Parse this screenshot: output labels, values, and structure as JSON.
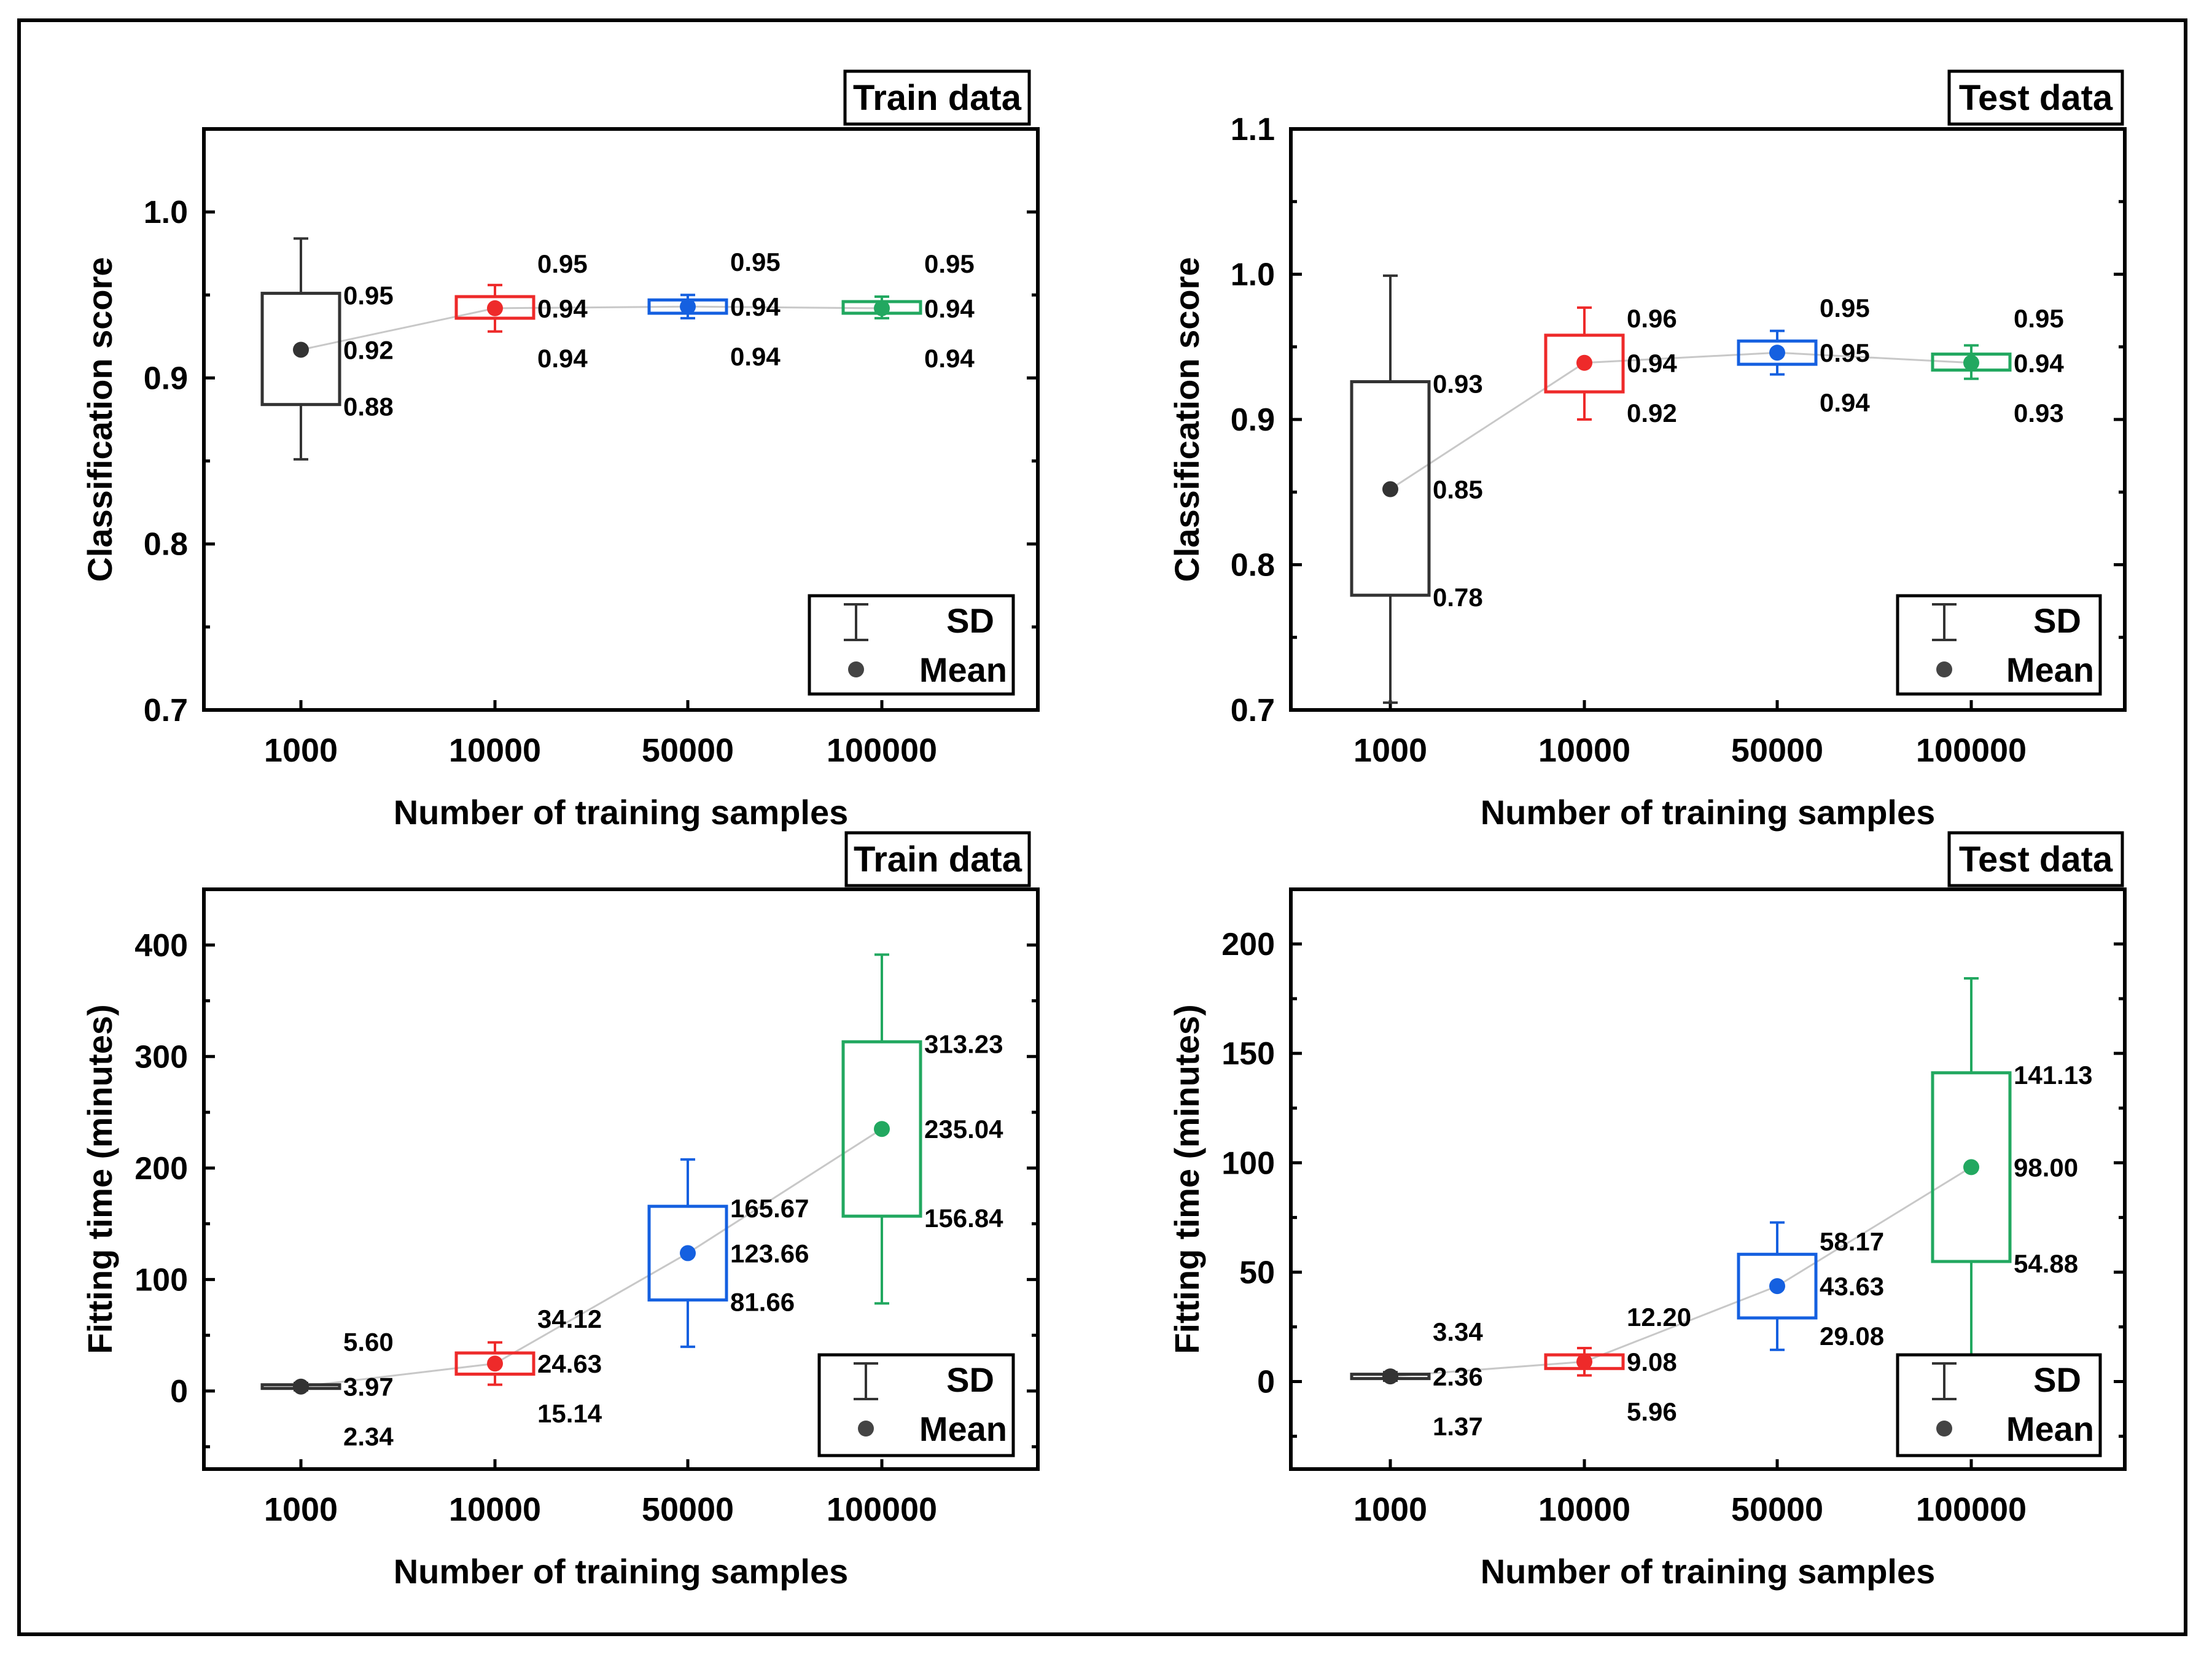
{
  "colors": {
    "1000": "#333333",
    "10000": "#ee2a2a",
    "50000": "#1560e0",
    "100000": "#22a860",
    "trend": "#c8c8c8"
  },
  "legend": {
    "sd_label": "SD",
    "mean_label": "Mean"
  },
  "chart_data": [
    {
      "type": "box",
      "title": "Train data",
      "xlabel": "Number of training samples",
      "ylabel": "Classification score",
      "categories": [
        "1000",
        "10000",
        "50000",
        "100000"
      ],
      "ylim": [
        0.7,
        1.05
      ],
      "yticks": [
        0.7,
        0.8,
        0.9,
        1.0
      ],
      "ytick_labels": [
        "0.7",
        "0.8",
        "0.9",
        "1.0"
      ],
      "series": [
        {
          "category": "1000",
          "mean": 0.917,
          "box_low": 0.884,
          "box_high": 0.951,
          "sd_low": 0.851,
          "sd_high": 0.984,
          "label_high": "0.95",
          "label_mean": "0.92",
          "label_low": "0.88"
        },
        {
          "category": "10000",
          "mean": 0.942,
          "box_low": 0.936,
          "box_high": 0.949,
          "sd_low": 0.928,
          "sd_high": 0.956,
          "label_high": "0.95",
          "label_mean": "0.94",
          "label_low": "0.94"
        },
        {
          "category": "50000",
          "mean": 0.943,
          "box_low": 0.939,
          "box_high": 0.947,
          "sd_low": 0.936,
          "sd_high": 0.95,
          "label_high": "0.95",
          "label_mean": "0.94",
          "label_low": "0.94"
        },
        {
          "category": "100000",
          "mean": 0.942,
          "box_low": 0.939,
          "box_high": 0.946,
          "sd_low": 0.936,
          "sd_high": 0.949,
          "label_high": "0.95",
          "label_mean": "0.94",
          "label_low": "0.94"
        }
      ]
    },
    {
      "type": "box",
      "title": "Test data",
      "xlabel": "Number of training samples",
      "ylabel": "Classification score",
      "categories": [
        "1000",
        "10000",
        "50000",
        "100000"
      ],
      "ylim": [
        0.7,
        1.1
      ],
      "yticks": [
        0.7,
        0.8,
        0.9,
        1.0,
        1.1
      ],
      "ytick_labels": [
        "0.7",
        "0.8",
        "0.9",
        "1.0",
        "1.1"
      ],
      "series": [
        {
          "category": "1000",
          "mean": 0.852,
          "box_low": 0.779,
          "box_high": 0.926,
          "sd_low": 0.705,
          "sd_high": 0.999,
          "label_high": "0.93",
          "label_mean": "0.85",
          "label_low": "0.78"
        },
        {
          "category": "10000",
          "mean": 0.939,
          "box_low": 0.919,
          "box_high": 0.958,
          "sd_low": 0.9,
          "sd_high": 0.977,
          "label_high": "0.96",
          "label_mean": "0.94",
          "label_low": "0.92"
        },
        {
          "category": "50000",
          "mean": 0.946,
          "box_low": 0.938,
          "box_high": 0.954,
          "sd_low": 0.931,
          "sd_high": 0.961,
          "label_high": "0.95",
          "label_mean": "0.95",
          "label_low": "0.94"
        },
        {
          "category": "100000",
          "mean": 0.939,
          "box_low": 0.934,
          "box_high": 0.945,
          "sd_low": 0.928,
          "sd_high": 0.951,
          "label_high": "0.95",
          "label_mean": "0.94",
          "label_low": "0.93"
        }
      ]
    },
    {
      "type": "box",
      "title": "Train data",
      "xlabel": "Number of training samples",
      "ylabel": "Fitting time (minutes)",
      "categories": [
        "1000",
        "10000",
        "50000",
        "100000"
      ],
      "ylim": [
        -70,
        450
      ],
      "yticks": [
        0,
        100,
        200,
        300,
        400
      ],
      "ytick_labels": [
        "0",
        "100",
        "200",
        "300",
        "400"
      ],
      "series": [
        {
          "category": "1000",
          "mean": 3.97,
          "box_low": 2.34,
          "box_high": 5.6,
          "sd_low": 0.7,
          "sd_high": 7.2,
          "label_high": "5.60",
          "label_mean": "3.97",
          "label_low": "2.34"
        },
        {
          "category": "10000",
          "mean": 24.63,
          "box_low": 15.14,
          "box_high": 34.12,
          "sd_low": 5.7,
          "sd_high": 43.6,
          "label_high": "34.12",
          "label_mean": "24.63",
          "label_low": "15.14"
        },
        {
          "category": "50000",
          "mean": 123.66,
          "box_low": 81.66,
          "box_high": 165.67,
          "sd_low": 39.7,
          "sd_high": 207.7,
          "label_high": "165.67",
          "label_mean": "123.66",
          "label_low": "81.66"
        },
        {
          "category": "100000",
          "mean": 235.04,
          "box_low": 156.84,
          "box_high": 313.23,
          "sd_low": 78.6,
          "sd_high": 391.4,
          "label_high": "313.23",
          "label_mean": "235.04",
          "label_low": "156.84"
        }
      ]
    },
    {
      "type": "box",
      "title": "Test data",
      "xlabel": "Number of training samples",
      "ylabel": "Fitting time (minutes)",
      "categories": [
        "1000",
        "10000",
        "50000",
        "100000"
      ],
      "ylim": [
        -40,
        225
      ],
      "yticks": [
        0,
        50,
        100,
        150,
        200
      ],
      "ytick_labels": [
        "0",
        "50",
        "100",
        "150",
        "200"
      ],
      "series": [
        {
          "category": "1000",
          "mean": 2.36,
          "box_low": 1.37,
          "box_high": 3.34,
          "sd_low": 0.4,
          "sd_high": 4.3,
          "label_high": "3.34",
          "label_mean": "2.36",
          "label_low": "1.37"
        },
        {
          "category": "10000",
          "mean": 9.08,
          "box_low": 5.96,
          "box_high": 12.2,
          "sd_low": 2.8,
          "sd_high": 15.3,
          "label_high": "12.20",
          "label_mean": "9.08",
          "label_low": "5.96"
        },
        {
          "category": "50000",
          "mean": 43.63,
          "box_low": 29.08,
          "box_high": 58.17,
          "sd_low": 14.5,
          "sd_high": 72.7,
          "label_high": "58.17",
          "label_mean": "43.63",
          "label_low": "29.08"
        },
        {
          "category": "100000",
          "mean": 98.0,
          "box_low": 54.88,
          "box_high": 141.13,
          "sd_low": 11.7,
          "sd_high": 184.3,
          "label_high": "141.13",
          "label_mean": "98.00",
          "label_low": "54.88"
        }
      ]
    }
  ]
}
